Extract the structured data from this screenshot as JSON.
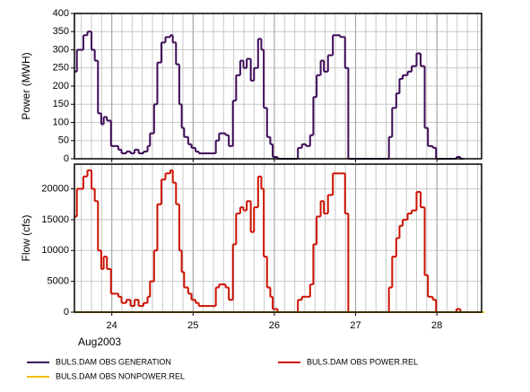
{
  "chart_data": [
    {
      "type": "step",
      "ylabel": "Power (MWH)",
      "xlim": [
        23.54,
        28.55
      ],
      "xticks": [
        24,
        25,
        26,
        27,
        28
      ],
      "ylim": [
        0,
        400
      ],
      "yticks": [
        0,
        50,
        100,
        150,
        200,
        250,
        300,
        350,
        400
      ],
      "grid": true,
      "series": [
        {
          "name": "BULS.DAM OBS GENERATION",
          "color": "#3d0a57",
          "x": [
            23.54,
            23.57,
            23.65,
            23.7,
            23.75,
            23.79,
            23.83,
            23.87,
            23.9,
            23.94,
            23.99,
            24.08,
            24.12,
            24.18,
            24.23,
            24.28,
            24.33,
            24.39,
            24.44,
            24.47,
            24.52,
            24.56,
            24.61,
            24.66,
            24.72,
            24.75,
            24.79,
            24.83,
            24.86,
            24.89,
            24.94,
            24.98,
            25.03,
            25.07,
            25.22,
            25.28,
            25.32,
            25.4,
            25.44,
            25.49,
            25.53,
            25.58,
            25.62,
            25.66,
            25.71,
            25.75,
            25.8,
            25.84,
            25.87,
            25.91,
            25.95,
            25.98,
            26.04,
            26.26,
            26.29,
            26.34,
            26.39,
            26.44,
            26.48,
            26.52,
            26.57,
            26.61,
            26.66,
            26.72,
            26.81,
            26.87,
            26.91,
            27.37,
            27.41,
            27.45,
            27.5,
            27.54,
            27.58,
            27.64,
            27.69,
            27.75,
            27.8,
            27.85,
            27.89,
            27.95,
            27.99,
            28.24,
            28.29
          ],
          "values": [
            240,
            300,
            340,
            350,
            300,
            270,
            125,
            95,
            115,
            105,
            35,
            25,
            15,
            20,
            15,
            25,
            15,
            20,
            35,
            70,
            150,
            265,
            320,
            335,
            340,
            320,
            260,
            150,
            85,
            60,
            40,
            30,
            20,
            15,
            15,
            50,
            70,
            65,
            35,
            160,
            230,
            270,
            250,
            275,
            215,
            250,
            330,
            300,
            140,
            60,
            40,
            5,
            0,
            0,
            30,
            40,
            35,
            65,
            170,
            230,
            270,
            240,
            285,
            340,
            335,
            250,
            0,
            0,
            60,
            140,
            180,
            220,
            230,
            240,
            255,
            290,
            255,
            85,
            35,
            30,
            0,
            5,
            0
          ]
        }
      ]
    },
    {
      "type": "step",
      "ylabel": "Flow (cfs)",
      "xlabel": "Aug2003",
      "xlim": [
        23.54,
        28.55
      ],
      "xticks": [
        24,
        25,
        26,
        27,
        28
      ],
      "ylim": [
        0,
        24000
      ],
      "yticks": [
        0,
        5000,
        10000,
        15000,
        20000
      ],
      "grid": true,
      "series": [
        {
          "name": "BULS.DAM OBS POWER.REL",
          "color": "#cc1100",
          "x": [
            23.54,
            23.57,
            23.65,
            23.7,
            23.75,
            23.79,
            23.83,
            23.87,
            23.9,
            23.94,
            23.99,
            24.08,
            24.12,
            24.18,
            24.23,
            24.28,
            24.33,
            24.39,
            24.44,
            24.47,
            24.52,
            24.56,
            24.61,
            24.66,
            24.72,
            24.75,
            24.79,
            24.83,
            24.86,
            24.89,
            24.94,
            24.98,
            25.03,
            25.07,
            25.22,
            25.28,
            25.32,
            25.4,
            25.44,
            25.49,
            25.53,
            25.58,
            25.62,
            25.66,
            25.71,
            25.75,
            25.8,
            25.84,
            25.87,
            25.91,
            25.95,
            25.98,
            26.04,
            26.26,
            26.29,
            26.34,
            26.39,
            26.44,
            26.48,
            26.52,
            26.57,
            26.61,
            26.66,
            26.72,
            26.81,
            26.87,
            26.91,
            27.37,
            27.41,
            27.45,
            27.5,
            27.54,
            27.58,
            27.64,
            27.69,
            27.75,
            27.8,
            27.85,
            27.89,
            27.95,
            27.99,
            28.24,
            28.29
          ],
          "values": [
            15500,
            20000,
            22000,
            23000,
            20000,
            18000,
            10000,
            7000,
            9000,
            7000,
            3000,
            2500,
            1500,
            2000,
            1000,
            2000,
            1000,
            1500,
            2500,
            5000,
            10000,
            17500,
            21500,
            22500,
            23000,
            21000,
            17500,
            10000,
            6500,
            4000,
            3000,
            2000,
            1500,
            1000,
            1000,
            4000,
            4500,
            4000,
            2000,
            11000,
            16000,
            17000,
            16500,
            18000,
            13000,
            17000,
            22000,
            20000,
            9000,
            4000,
            2500,
            500,
            0,
            0,
            2000,
            2500,
            2500,
            4500,
            11000,
            15500,
            18000,
            16000,
            19000,
            22500,
            22500,
            16000,
            0,
            0,
            4000,
            9000,
            12000,
            14000,
            15000,
            16000,
            16500,
            19500,
            17000,
            6000,
            2500,
            2000,
            0,
            500,
            0
          ]
        },
        {
          "name": "BULS.DAM OBS NONPOWER.REL",
          "color": "#f0c000",
          "x": [
            23.54,
            28.55
          ],
          "values": [
            0,
            0
          ]
        }
      ]
    }
  ]
}
